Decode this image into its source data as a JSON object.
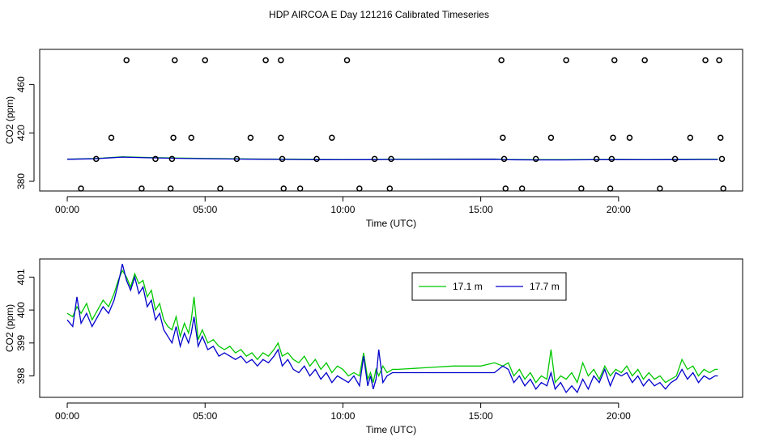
{
  "page": {
    "title": "HDP AIRCOA E  Day 121216  Calibrated Timeseries"
  },
  "colors": {
    "green": "#00c800",
    "blue": "#0000cc",
    "axis": "#000000",
    "background": "#ffffff"
  },
  "chart_data": [
    {
      "type": "scatter",
      "id": "top",
      "title": "HDP AIRCOA E  Day 121216  Calibrated Timeseries",
      "xlabel": "Time (UTC)",
      "ylabel": "CO2 (ppm)",
      "xlim": [
        -1.0,
        24.5
      ],
      "ylim": [
        372,
        489
      ],
      "x_ticks": [
        0,
        5,
        10,
        15,
        20
      ],
      "x_tick_labels": [
        "00:00",
        "05:00",
        "10:00",
        "15:00",
        "20:00"
      ],
      "y_ticks": [
        380,
        420,
        460
      ],
      "y_tick_labels": [
        "380",
        "420",
        "460"
      ],
      "points": [
        {
          "x": 0.5,
          "y": 374
        },
        {
          "x": 1.05,
          "y": 398.5
        },
        {
          "x": 1.6,
          "y": 416
        },
        {
          "x": 2.15,
          "y": 480
        },
        {
          "x": 2.7,
          "y": 374
        },
        {
          "x": 3.2,
          "y": 398.5
        },
        {
          "x": 3.75,
          "y": 374
        },
        {
          "x": 3.8,
          "y": 398.5
        },
        {
          "x": 3.85,
          "y": 416
        },
        {
          "x": 3.9,
          "y": 480
        },
        {
          "x": 4.5,
          "y": 416
        },
        {
          "x": 5.0,
          "y": 480
        },
        {
          "x": 5.55,
          "y": 374
        },
        {
          "x": 6.15,
          "y": 398.5
        },
        {
          "x": 6.65,
          "y": 416
        },
        {
          "x": 7.2,
          "y": 480
        },
        {
          "x": 7.75,
          "y": 480
        },
        {
          "x": 7.75,
          "y": 416
        },
        {
          "x": 7.8,
          "y": 398.5
        },
        {
          "x": 7.85,
          "y": 374
        },
        {
          "x": 8.45,
          "y": 374
        },
        {
          "x": 9.05,
          "y": 398.5
        },
        {
          "x": 9.6,
          "y": 416
        },
        {
          "x": 10.15,
          "y": 480
        },
        {
          "x": 10.6,
          "y": 374
        },
        {
          "x": 11.15,
          "y": 398.5
        },
        {
          "x": 11.7,
          "y": 374
        },
        {
          "x": 11.75,
          "y": 398.5
        },
        {
          "x": 15.75,
          "y": 480
        },
        {
          "x": 15.8,
          "y": 416
        },
        {
          "x": 15.85,
          "y": 398.5
        },
        {
          "x": 15.9,
          "y": 374
        },
        {
          "x": 16.5,
          "y": 374
        },
        {
          "x": 17.0,
          "y": 398.5
        },
        {
          "x": 17.55,
          "y": 416
        },
        {
          "x": 18.1,
          "y": 480
        },
        {
          "x": 18.65,
          "y": 374
        },
        {
          "x": 19.2,
          "y": 398.5
        },
        {
          "x": 19.7,
          "y": 374
        },
        {
          "x": 19.75,
          "y": 398.5
        },
        {
          "x": 19.8,
          "y": 416
        },
        {
          "x": 19.85,
          "y": 480
        },
        {
          "x": 20.4,
          "y": 416
        },
        {
          "x": 20.95,
          "y": 480
        },
        {
          "x": 21.5,
          "y": 374
        },
        {
          "x": 22.05,
          "y": 398.5
        },
        {
          "x": 22.6,
          "y": 416
        },
        {
          "x": 23.15,
          "y": 480
        },
        {
          "x": 23.65,
          "y": 480
        },
        {
          "x": 23.7,
          "y": 416
        },
        {
          "x": 23.75,
          "y": 398.5
        },
        {
          "x": 23.8,
          "y": 374
        }
      ],
      "series": [
        {
          "name": "17.1 m",
          "color": "green",
          "x": [
            0,
            1,
            2,
            3,
            4,
            5,
            6,
            7,
            8,
            9,
            10,
            11,
            12,
            15.5,
            16,
            17,
            18,
            19,
            20,
            21,
            22,
            23,
            23.6
          ],
          "y": [
            398.3,
            398.8,
            400.2,
            399.6,
            399.2,
            398.9,
            398.6,
            398.4,
            398.3,
            398.1,
            398.0,
            398.0,
            398.3,
            398.4,
            398.0,
            397.9,
            397.9,
            398.0,
            398.1,
            398.0,
            398.1,
            398.2,
            398.2
          ]
        },
        {
          "name": "17.7 m",
          "color": "blue",
          "x": [
            0,
            1,
            2,
            3,
            4,
            5,
            6,
            7,
            8,
            9,
            10,
            11,
            12,
            15.5,
            16,
            17,
            18,
            19,
            20,
            21,
            22,
            23,
            23.6
          ],
          "y": [
            398.2,
            398.6,
            400.0,
            399.4,
            399.0,
            398.7,
            398.4,
            398.2,
            398.1,
            397.9,
            397.8,
            397.9,
            398.1,
            398.2,
            397.8,
            397.7,
            397.7,
            397.8,
            397.9,
            397.8,
            397.9,
            398.0,
            398.0
          ]
        }
      ]
    },
    {
      "type": "line",
      "id": "bottom",
      "xlabel": "Time (UTC)",
      "ylabel": "CO2 (ppm)",
      "xlim": [
        -1.0,
        24.5
      ],
      "ylim": [
        397.35,
        401.55
      ],
      "x_ticks": [
        0,
        5,
        10,
        15,
        20
      ],
      "x_tick_labels": [
        "00:00",
        "05:00",
        "10:00",
        "15:00",
        "20:00"
      ],
      "y_ticks": [
        398,
        399,
        400,
        401
      ],
      "y_tick_labels": [
        "398",
        "399",
        "400",
        "401"
      ],
      "legend": {
        "position": "top-right",
        "entries": [
          "17.1 m",
          "17.7 m"
        ]
      },
      "series": [
        {
          "name": "17.1 m",
          "color": "green",
          "x": [
            0,
            0.2,
            0.35,
            0.5,
            0.7,
            0.9,
            1.1,
            1.3,
            1.5,
            1.7,
            1.85,
            2.0,
            2.15,
            2.3,
            2.45,
            2.6,
            2.75,
            2.9,
            3.05,
            3.2,
            3.35,
            3.5,
            3.65,
            3.8,
            3.95,
            4.1,
            4.25,
            4.4,
            4.5,
            4.6,
            4.75,
            4.9,
            5.1,
            5.3,
            5.5,
            5.7,
            5.9,
            6.1,
            6.3,
            6.5,
            6.7,
            6.9,
            7.1,
            7.3,
            7.5,
            7.65,
            7.8,
            8.0,
            8.2,
            8.4,
            8.6,
            8.8,
            9.0,
            9.2,
            9.4,
            9.6,
            9.8,
            10.0,
            10.2,
            10.4,
            10.6,
            10.75,
            10.9,
            11.0,
            11.1,
            11.2,
            11.3,
            11.45,
            11.6,
            11.8,
            12.0,
            13.0,
            14.0,
            15.0,
            15.5,
            15.8,
            16.0,
            16.2,
            16.4,
            16.6,
            16.8,
            17.0,
            17.2,
            17.4,
            17.55,
            17.7,
            17.9,
            18.1,
            18.3,
            18.5,
            18.7,
            18.9,
            19.1,
            19.3,
            19.5,
            19.7,
            19.9,
            20.1,
            20.3,
            20.5,
            20.7,
            20.9,
            21.1,
            21.3,
            21.5,
            21.7,
            21.9,
            22.1,
            22.3,
            22.5,
            22.7,
            22.9,
            23.1,
            23.3,
            23.5,
            23.6
          ],
          "y": [
            399.9,
            399.8,
            400.1,
            399.9,
            400.2,
            399.7,
            400.0,
            400.3,
            400.1,
            400.5,
            400.9,
            401.2,
            401.0,
            400.7,
            401.1,
            400.8,
            400.9,
            400.4,
            400.6,
            400.0,
            400.2,
            399.7,
            399.5,
            399.4,
            399.8,
            399.2,
            399.6,
            399.3,
            399.7,
            400.4,
            399.1,
            399.4,
            399.0,
            399.1,
            398.9,
            398.8,
            398.9,
            398.7,
            398.8,
            398.6,
            398.7,
            398.5,
            398.7,
            398.6,
            398.8,
            399.0,
            398.6,
            398.7,
            398.5,
            398.4,
            398.6,
            398.3,
            398.5,
            398.2,
            398.4,
            398.1,
            398.3,
            398.2,
            398.0,
            398.1,
            398.0,
            398.7,
            397.9,
            398.1,
            397.8,
            398.2,
            398.0,
            398.3,
            398.1,
            398.2,
            398.2,
            398.25,
            398.3,
            398.3,
            398.4,
            398.3,
            398.4,
            398.0,
            398.2,
            397.9,
            398.1,
            397.8,
            398.0,
            397.9,
            398.8,
            397.8,
            398.0,
            397.9,
            398.1,
            397.8,
            398.4,
            398.0,
            398.2,
            397.9,
            398.3,
            398.0,
            398.2,
            398.1,
            398.3,
            398.0,
            398.2,
            397.9,
            398.1,
            397.9,
            398.0,
            397.8,
            397.9,
            398.0,
            398.5,
            398.2,
            398.3,
            398.0,
            398.2,
            398.1,
            398.2,
            398.2
          ]
        },
        {
          "name": "17.7 m",
          "color": "blue",
          "x": [
            0,
            0.2,
            0.35,
            0.5,
            0.7,
            0.9,
            1.1,
            1.3,
            1.5,
            1.7,
            1.85,
            2.0,
            2.15,
            2.3,
            2.45,
            2.6,
            2.75,
            2.9,
            3.05,
            3.2,
            3.35,
            3.5,
            3.65,
            3.8,
            3.95,
            4.1,
            4.25,
            4.4,
            4.5,
            4.6,
            4.75,
            4.9,
            5.1,
            5.3,
            5.5,
            5.7,
            5.9,
            6.1,
            6.3,
            6.5,
            6.7,
            6.9,
            7.1,
            7.3,
            7.5,
            7.65,
            7.8,
            8.0,
            8.2,
            8.4,
            8.6,
            8.8,
            9.0,
            9.2,
            9.4,
            9.6,
            9.8,
            10.0,
            10.2,
            10.4,
            10.6,
            10.75,
            10.9,
            11.0,
            11.1,
            11.2,
            11.3,
            11.45,
            11.6,
            11.8,
            12.0,
            13.0,
            14.0,
            15.0,
            15.5,
            15.8,
            16.0,
            16.2,
            16.4,
            16.6,
            16.8,
            17.0,
            17.2,
            17.4,
            17.55,
            17.7,
            17.9,
            18.1,
            18.3,
            18.5,
            18.7,
            18.9,
            19.1,
            19.3,
            19.5,
            19.7,
            19.9,
            20.1,
            20.3,
            20.5,
            20.7,
            20.9,
            21.1,
            21.3,
            21.5,
            21.7,
            21.9,
            22.1,
            22.3,
            22.5,
            22.7,
            22.9,
            23.1,
            23.3,
            23.5,
            23.6
          ],
          "y": [
            399.7,
            399.5,
            400.4,
            399.6,
            399.9,
            399.5,
            399.8,
            400.1,
            399.9,
            400.3,
            400.8,
            401.4,
            400.9,
            400.6,
            401.0,
            400.5,
            400.7,
            400.1,
            400.3,
            399.7,
            399.9,
            399.4,
            399.2,
            399.0,
            399.5,
            398.9,
            399.3,
            399.0,
            399.3,
            399.8,
            398.9,
            399.2,
            398.8,
            398.9,
            398.6,
            398.7,
            398.6,
            398.5,
            398.6,
            398.4,
            398.5,
            398.3,
            398.5,
            398.4,
            398.6,
            398.8,
            398.3,
            398.5,
            398.2,
            398.1,
            398.3,
            398.0,
            398.2,
            397.9,
            398.1,
            397.8,
            398.0,
            397.9,
            397.8,
            398.0,
            397.7,
            398.6,
            397.7,
            398.0,
            397.6,
            397.9,
            398.8,
            397.8,
            398.0,
            398.1,
            398.1,
            398.1,
            398.1,
            398.1,
            398.1,
            398.3,
            398.2,
            397.8,
            398.0,
            397.7,
            397.9,
            397.6,
            397.8,
            397.7,
            398.1,
            397.6,
            397.8,
            397.5,
            397.7,
            397.5,
            397.9,
            397.6,
            398.0,
            397.8,
            398.2,
            397.7,
            398.1,
            398.0,
            398.1,
            397.8,
            398.0,
            397.7,
            397.9,
            397.7,
            397.8,
            397.6,
            397.8,
            397.9,
            398.2,
            397.9,
            398.1,
            397.8,
            398.0,
            397.9,
            398.0,
            398.0
          ]
        }
      ]
    }
  ]
}
